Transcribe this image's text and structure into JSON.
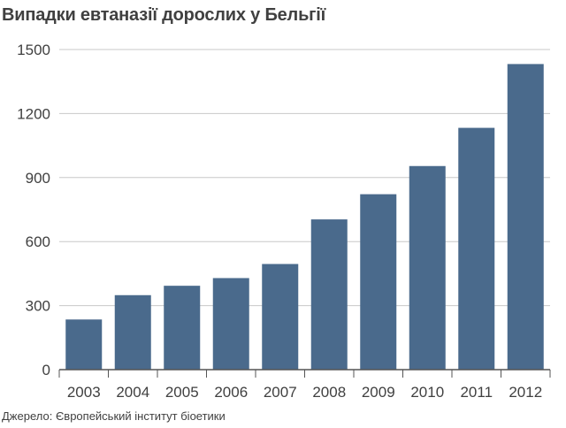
{
  "chart_data": {
    "type": "bar",
    "title": "Випадки евтаназії дорослих у Бельгії",
    "source": "Джерело: Європейський інститут біоетики",
    "categories": [
      "2003",
      "2004",
      "2005",
      "2006",
      "2007",
      "2008",
      "2009",
      "2010",
      "2011",
      "2012"
    ],
    "values": [
      235,
      349,
      393,
      429,
      495,
      704,
      822,
      954,
      1133,
      1432
    ],
    "xlabel": "",
    "ylabel": "",
    "ylim": [
      0,
      1500
    ],
    "yticks": [
      0,
      300,
      600,
      900,
      1200,
      1500
    ],
    "grid": true,
    "bar_color": "#4a6a8c"
  }
}
